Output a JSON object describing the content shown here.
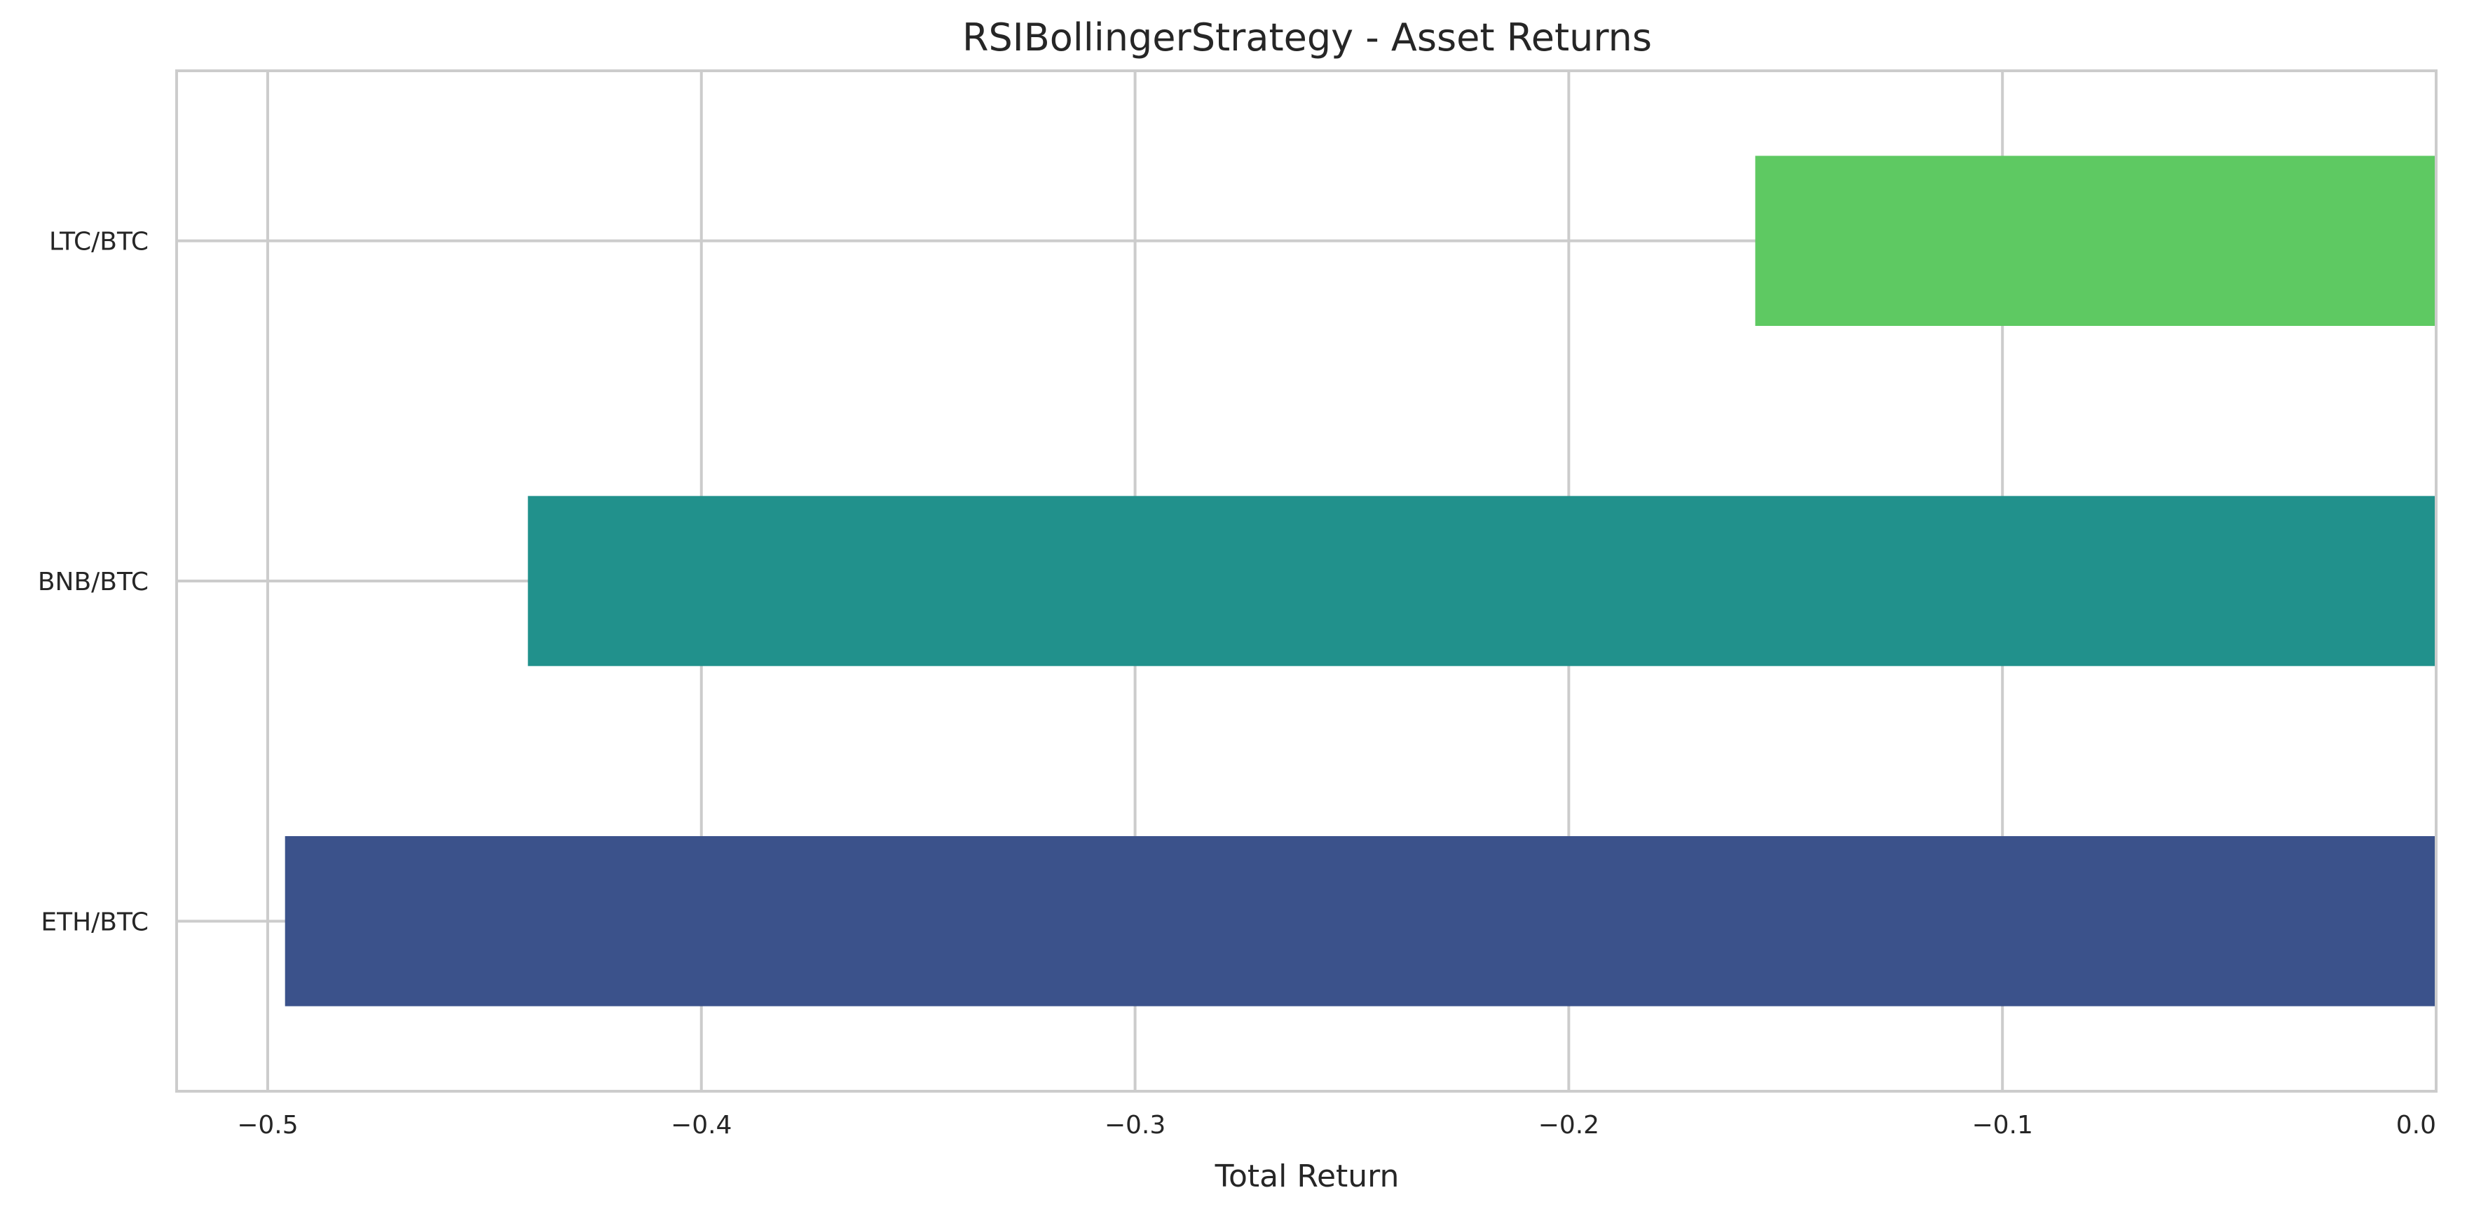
{
  "chart_data": {
    "type": "bar",
    "orientation": "horizontal",
    "title": "RSIBollingerStrategy - Asset Returns",
    "xlabel": "Total Return",
    "ylabel": "",
    "categories": [
      "ETH/BTC",
      "BNB/BTC",
      "LTC/BTC"
    ],
    "values": [
      -0.496,
      -0.44,
      -0.157
    ],
    "colors": [
      "#3b528b",
      "#21918c",
      "#5ec962"
    ],
    "xlim": [
      -0.521,
      0.0
    ],
    "xticks": [
      -0.5,
      -0.4,
      -0.3,
      -0.2,
      -0.1,
      0.0
    ],
    "xtick_labels": [
      "−0.5",
      "−0.4",
      "−0.3",
      "−0.2",
      "−0.1",
      "0.0"
    ],
    "grid": true,
    "legend": "none"
  }
}
